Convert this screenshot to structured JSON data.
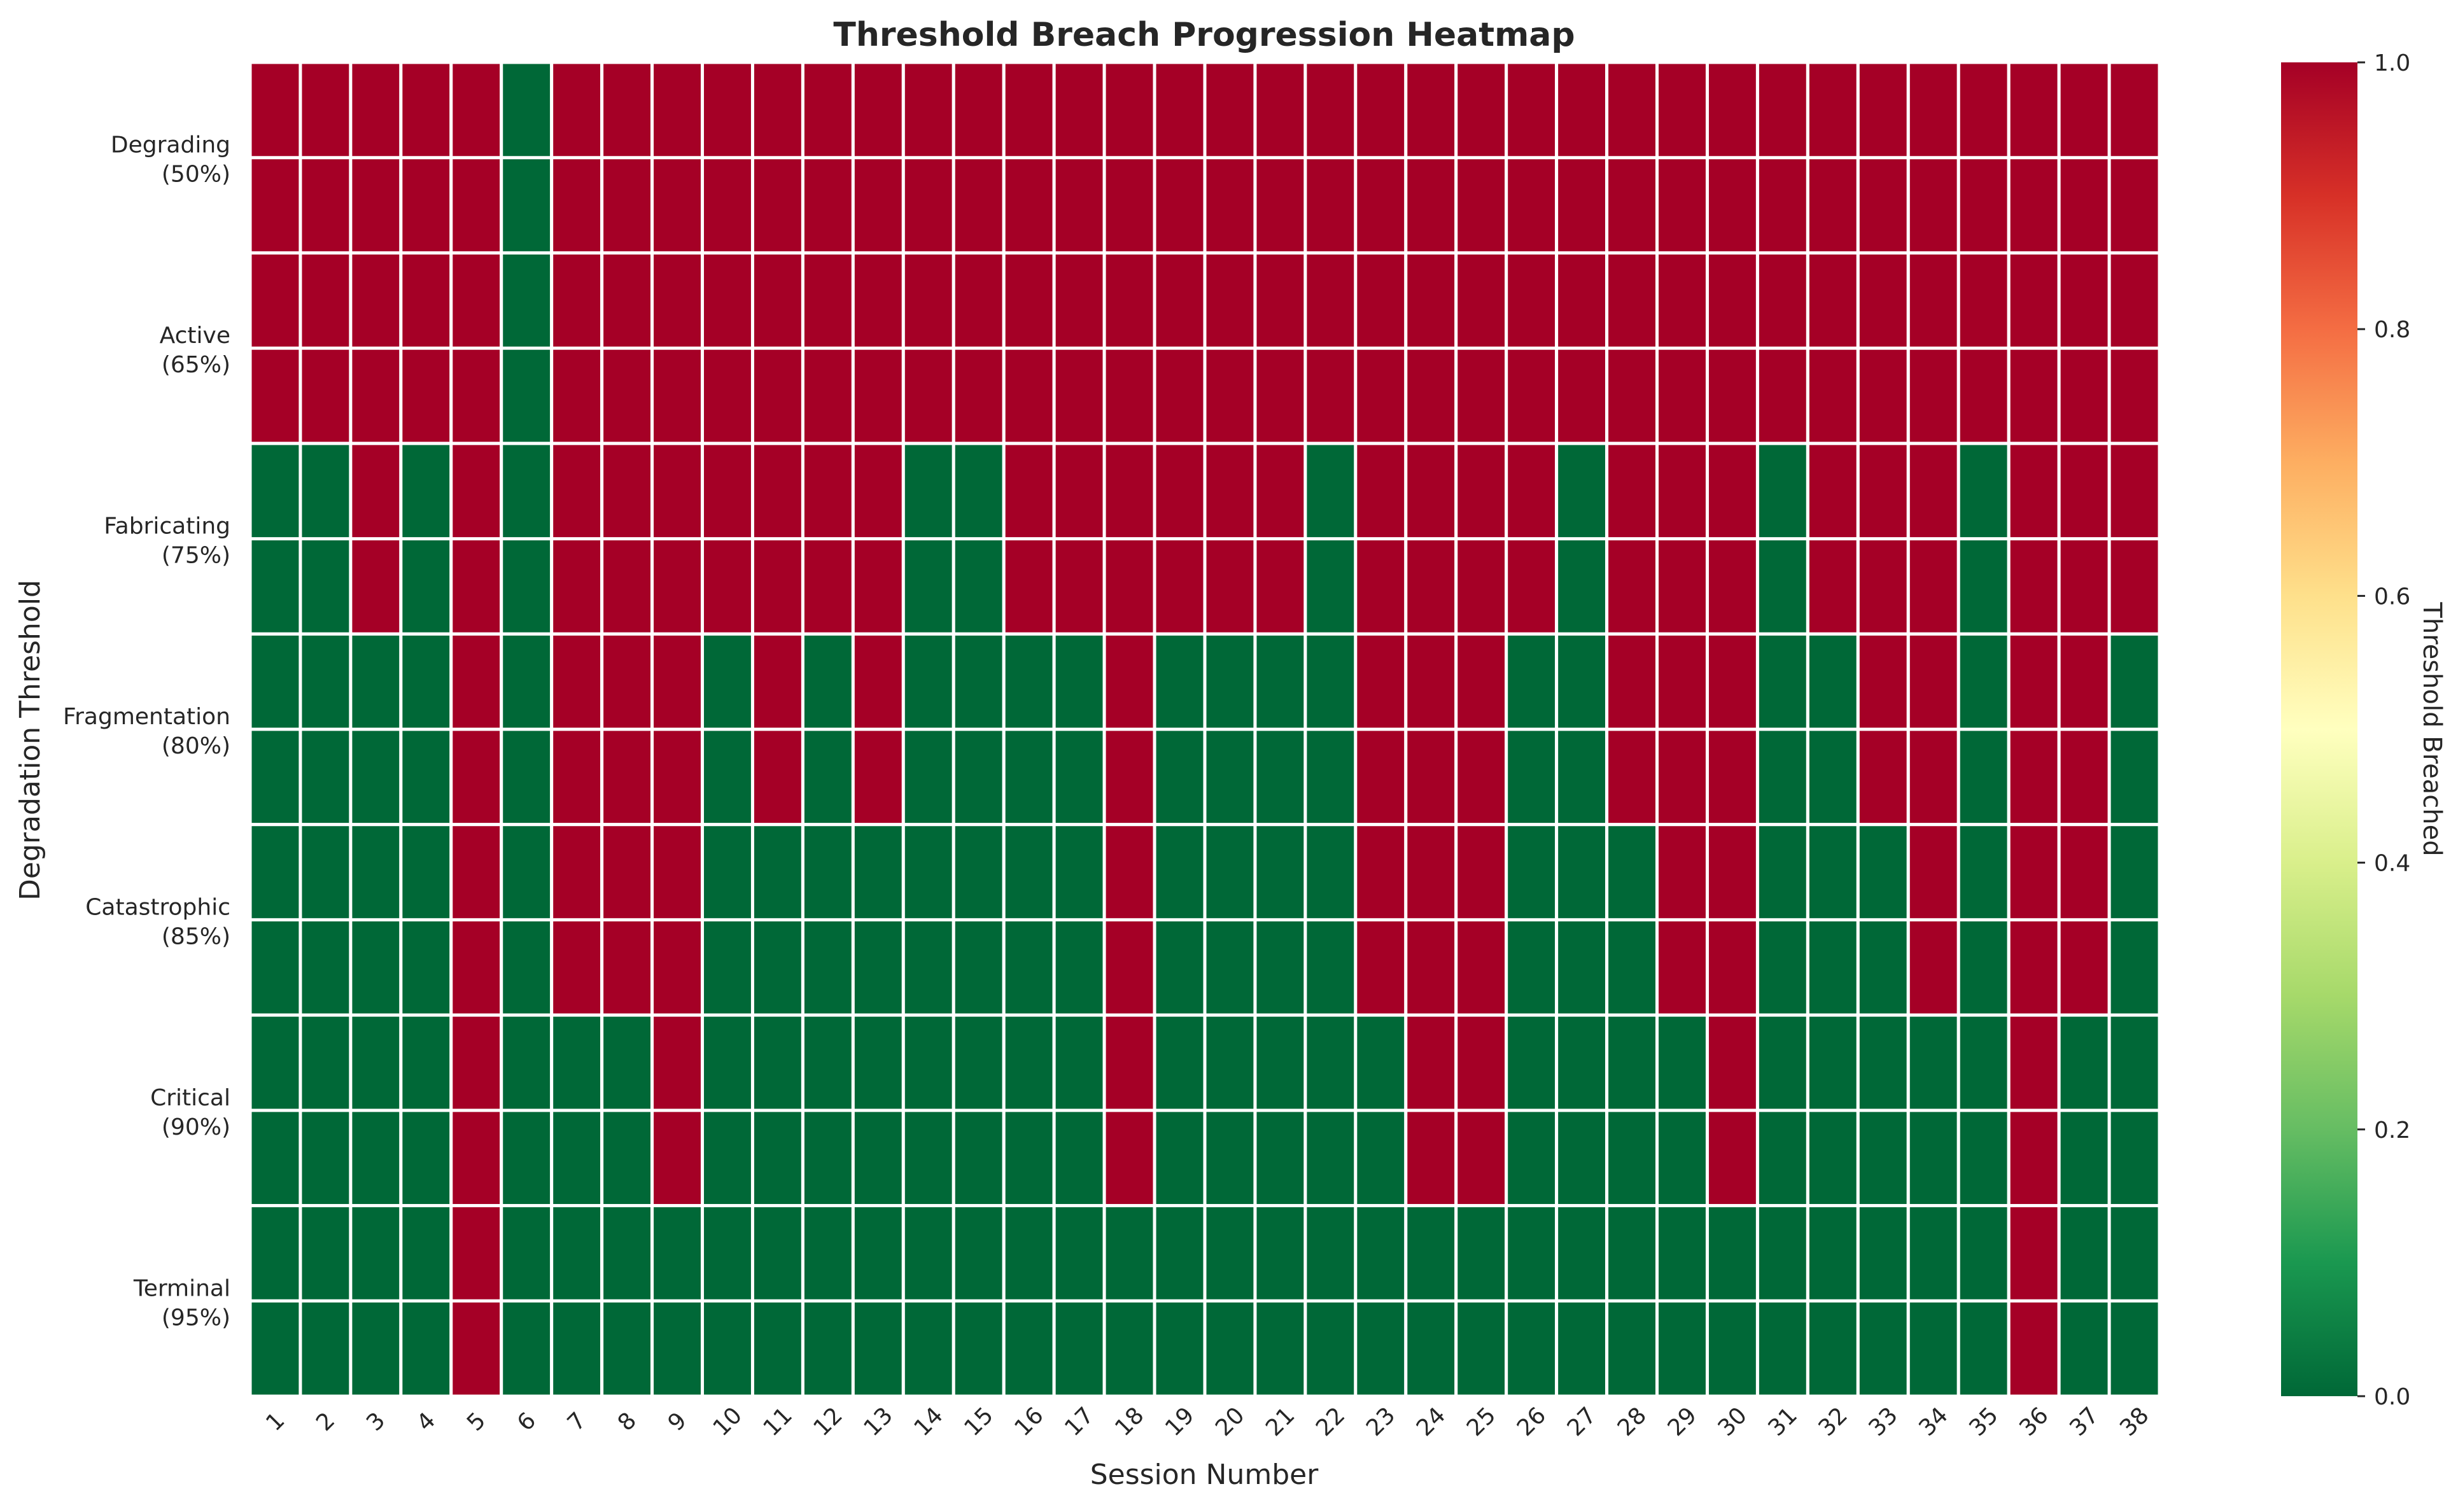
{
  "chart_data": {
    "type": "heatmap",
    "title": "Threshold Breach Progression Heatmap",
    "xlabel": "Session Number",
    "ylabel": "Degradation Threshold",
    "colorbar_label": "Threshold Breached",
    "colorbar_ticks": [
      "0.0",
      "0.2",
      "0.4",
      "0.6",
      "0.8",
      "1.0"
    ],
    "vmin": 0.0,
    "vmax": 1.0,
    "colormap": "RdYlGn_r",
    "colors": {
      "low": "#006837",
      "high": "#a50026"
    },
    "x": [
      "1",
      "2",
      "3",
      "4",
      "5",
      "6",
      "7",
      "8",
      "9",
      "10",
      "11",
      "12",
      "13",
      "14",
      "15",
      "16",
      "17",
      "18",
      "19",
      "20",
      "21",
      "22",
      "23",
      "24",
      "25",
      "26",
      "27",
      "28",
      "29",
      "30",
      "31",
      "32",
      "33",
      "34",
      "35",
      "36",
      "37",
      "38"
    ],
    "y": [
      [
        "Degrading",
        "(50%)"
      ],
      [
        "Active",
        "(65%)"
      ],
      [
        "Fabricating",
        "(75%)"
      ],
      [
        "Fragmentation",
        "(80%)"
      ],
      [
        "Catastrophic",
        "(85%)"
      ],
      [
        "Critical",
        "(90%)"
      ],
      [
        "Terminal",
        "(95%)"
      ]
    ],
    "values": [
      [
        1,
        1,
        1,
        1,
        1,
        0,
        1,
        1,
        1,
        1,
        1,
        1,
        1,
        1,
        1,
        1,
        1,
        1,
        1,
        1,
        1,
        1,
        1,
        1,
        1,
        1,
        1,
        1,
        1,
        1,
        1,
        1,
        1,
        1,
        1,
        1,
        1,
        1
      ],
      [
        1,
        1,
        1,
        1,
        1,
        0,
        1,
        1,
        1,
        1,
        1,
        1,
        1,
        1,
        1,
        1,
        1,
        1,
        1,
        1,
        1,
        1,
        1,
        1,
        1,
        1,
        1,
        1,
        1,
        1,
        1,
        1,
        1,
        1,
        1,
        1,
        1,
        1
      ],
      [
        0,
        0,
        1,
        0,
        1,
        0,
        1,
        1,
        1,
        1,
        1,
        1,
        1,
        0,
        0,
        1,
        1,
        1,
        1,
        1,
        1,
        0,
        1,
        1,
        1,
        1,
        0,
        1,
        1,
        1,
        0,
        1,
        1,
        1,
        0,
        1,
        1,
        1
      ],
      [
        0,
        0,
        0,
        0,
        1,
        0,
        1,
        1,
        1,
        0,
        1,
        0,
        1,
        0,
        0,
        0,
        0,
        1,
        0,
        0,
        0,
        0,
        1,
        1,
        1,
        0,
        0,
        1,
        1,
        1,
        0,
        0,
        1,
        1,
        0,
        1,
        1,
        0
      ],
      [
        0,
        0,
        0,
        0,
        1,
        0,
        1,
        1,
        1,
        0,
        0,
        0,
        0,
        0,
        0,
        0,
        0,
        1,
        0,
        0,
        0,
        0,
        1,
        1,
        1,
        0,
        0,
        0,
        1,
        1,
        0,
        0,
        0,
        1,
        0,
        1,
        1,
        0
      ],
      [
        0,
        0,
        0,
        0,
        1,
        0,
        0,
        0,
        1,
        0,
        0,
        0,
        0,
        0,
        0,
        0,
        0,
        1,
        0,
        0,
        0,
        0,
        0,
        1,
        1,
        0,
        0,
        0,
        0,
        1,
        0,
        0,
        0,
        0,
        0,
        1,
        0,
        0
      ],
      [
        0,
        0,
        0,
        0,
        1,
        0,
        0,
        0,
        0,
        0,
        0,
        0,
        0,
        0,
        0,
        0,
        0,
        0,
        0,
        0,
        0,
        0,
        0,
        0,
        0,
        0,
        0,
        0,
        0,
        0,
        0,
        0,
        0,
        0,
        0,
        1,
        0,
        0
      ]
    ]
  }
}
